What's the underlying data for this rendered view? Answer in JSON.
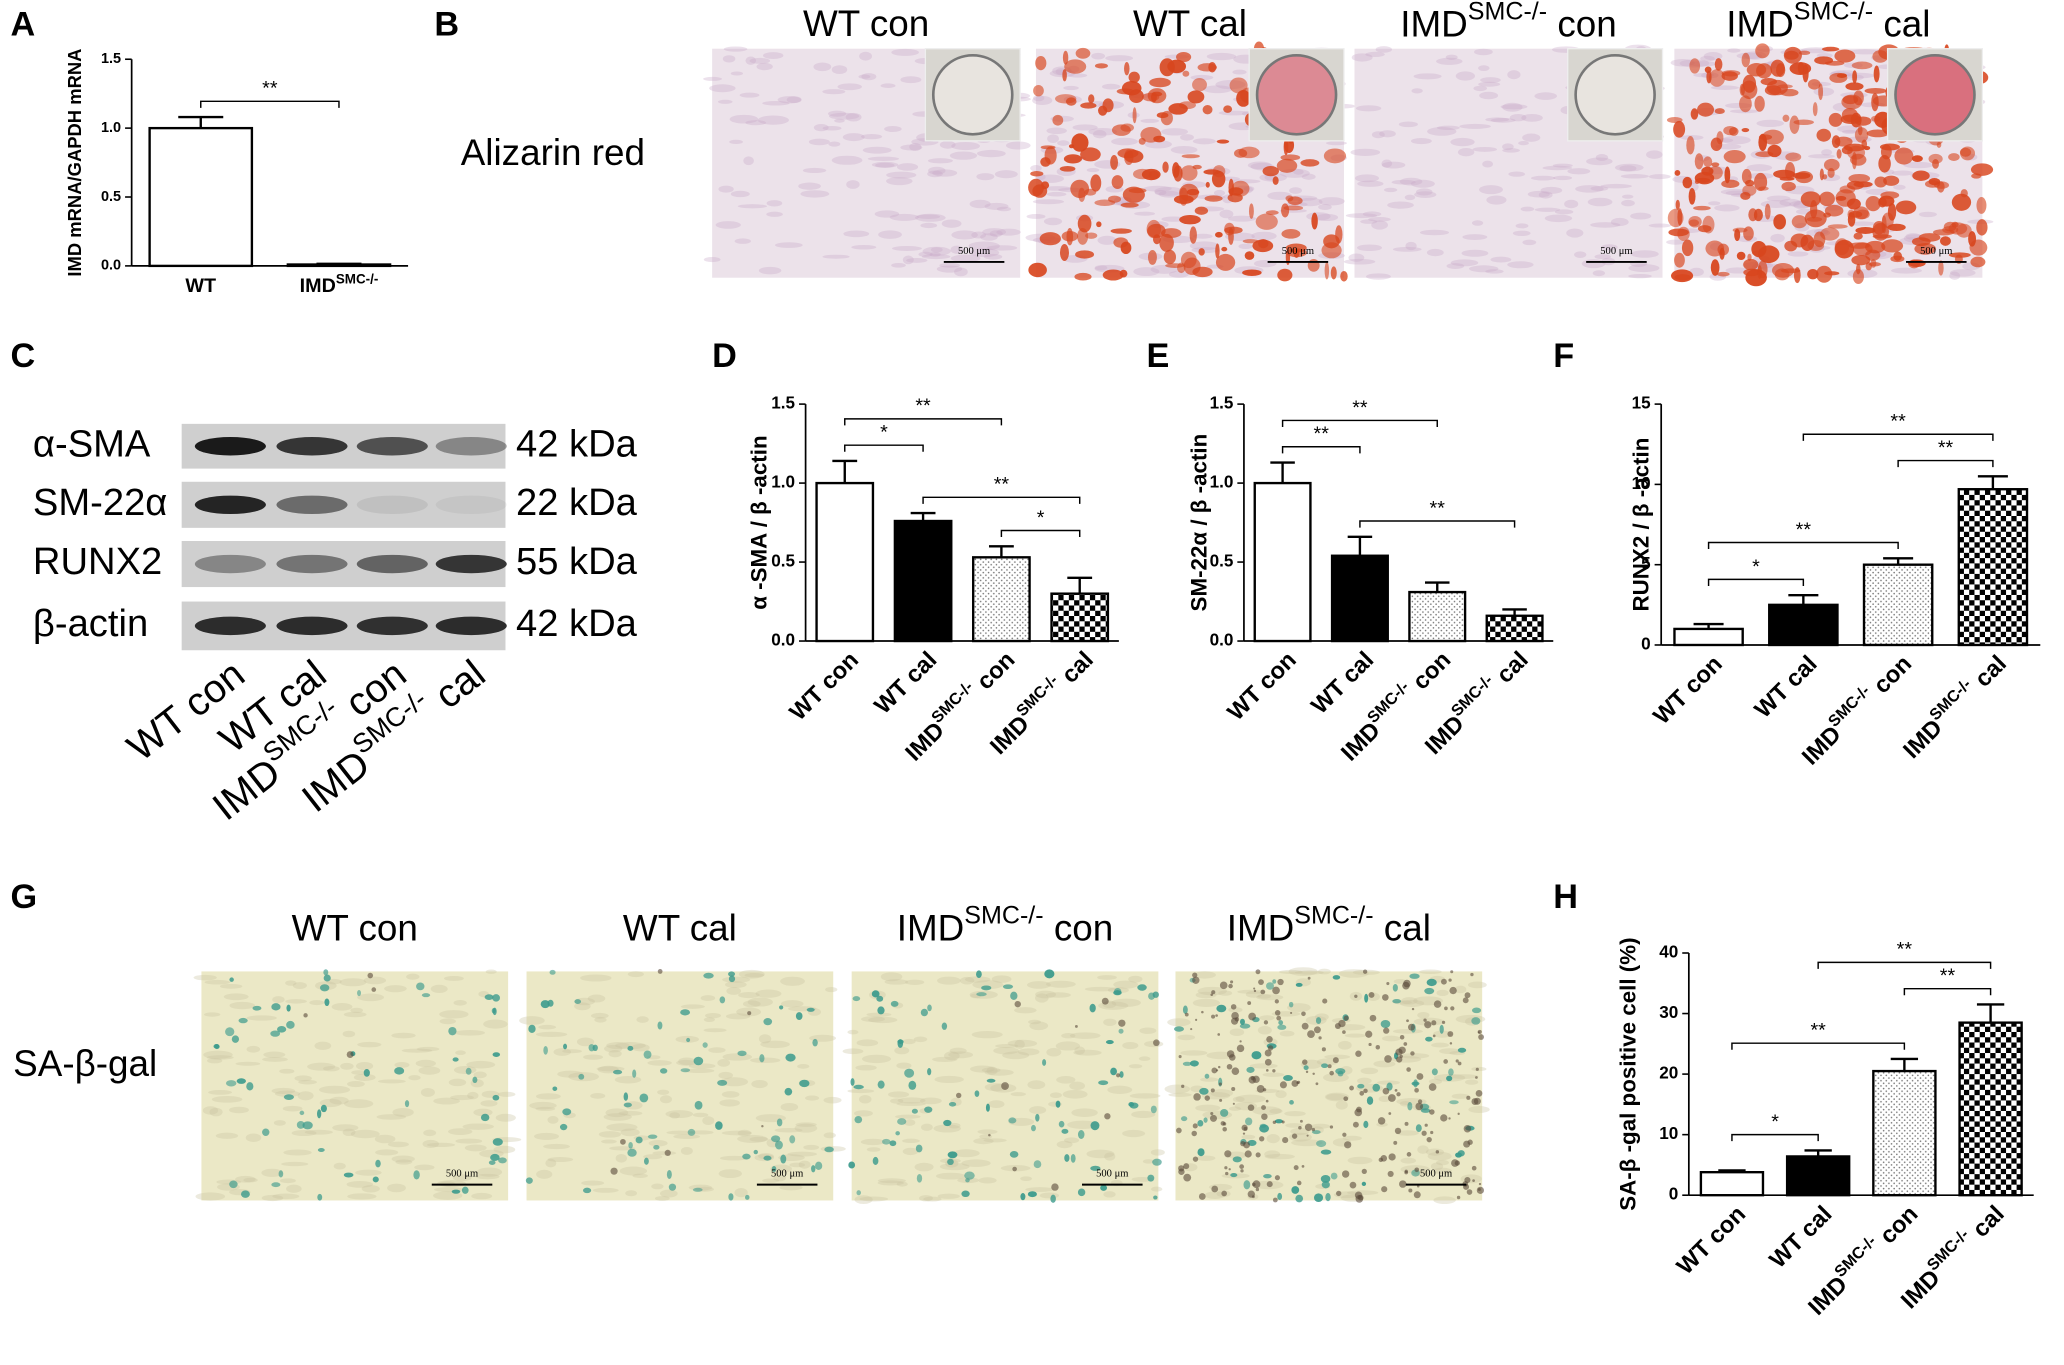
{
  "superscript": "SMC-/-",
  "chart_data": [
    {
      "type": "bar",
      "panel": "A",
      "y_label": "IMD mRNA/GAPDH mRNA",
      "categories": [
        "WT",
        "IMDSMC-/-"
      ],
      "values": [
        1.0,
        0.01
      ],
      "errors": [
        0.08,
        0.005
      ],
      "patterns": [
        "none",
        "none"
      ],
      "ylim": [
        0,
        1.5
      ],
      "yticks": [
        {
          "value": 0,
          "label": "0.0"
        },
        0.5,
        {
          "value": 1,
          "label": "1.0"
        },
        1.5
      ],
      "annotations": [
        {
          "text": "**",
          "from": 0,
          "to": 1
        }
      ]
    },
    {
      "type": "bar",
      "panel": "D",
      "y_label": "α -SMA / β -actin",
      "categories": [
        "WT con",
        "WT cal",
        "IMDSMC-/- con",
        "IMDSMC-/- cal"
      ],
      "values": [
        1.0,
        0.76,
        0.53,
        0.3
      ],
      "errors": [
        0.14,
        0.05,
        0.07,
        0.1
      ],
      "patterns": [
        "none",
        "solid",
        "dots",
        "checker"
      ],
      "ylim": [
        0,
        1.5
      ],
      "yticks": [
        {
          "value": 0,
          "label": "0.0"
        },
        0.5,
        {
          "value": 1,
          "label": "1.0"
        },
        1.5
      ],
      "annotations": [
        {
          "text": "*",
          "from": 0,
          "to": 1
        },
        {
          "text": "*",
          "from": 2,
          "to": 3
        },
        {
          "text": "**",
          "from": 1,
          "to": 3
        },
        {
          "text": "**",
          "from": 0,
          "to": 2
        }
      ]
    },
    {
      "type": "bar",
      "panel": "E",
      "y_label": "SM-22α / β -actin",
      "categories": [
        "WT con",
        "WT cal",
        "IMDSMC-/- con",
        "IMDSMC-/- cal"
      ],
      "values": [
        1.0,
        0.54,
        0.31,
        0.16
      ],
      "errors": [
        0.13,
        0.12,
        0.06,
        0.04
      ],
      "patterns": [
        "none",
        "solid",
        "dots",
        "checker"
      ],
      "ylim": [
        0,
        1.5
      ],
      "yticks": [
        {
          "value": 0,
          "label": "0.0"
        },
        0.5,
        {
          "value": 1,
          "label": "1.0"
        },
        1.5
      ],
      "annotations": [
        {
          "text": "**",
          "from": 0,
          "to": 1
        },
        {
          "text": "**",
          "from": 1,
          "to": 3
        },
        {
          "text": "**",
          "from": 0,
          "to": 2
        }
      ]
    },
    {
      "type": "bar",
      "panel": "F",
      "y_label": "RUNX2 / β -actin",
      "categories": [
        "WT con",
        "WT cal",
        "IMDSMC-/- con",
        "IMDSMC-/- cal"
      ],
      "values": [
        1.0,
        2.5,
        5.0,
        9.7
      ],
      "errors": [
        0.3,
        0.6,
        0.4,
        0.8
      ],
      "patterns": [
        "none",
        "solid",
        "dots",
        "checker"
      ],
      "ylim": [
        0,
        15
      ],
      "yticks": [
        0,
        5,
        10,
        15
      ],
      "annotations": [
        {
          "text": "*",
          "from": 0,
          "to": 1
        },
        {
          "text": "**",
          "from": 2,
          "to": 3
        },
        {
          "text": "**",
          "from": 0,
          "to": 2
        },
        {
          "text": "**",
          "from": 1,
          "to": 3
        }
      ]
    },
    {
      "type": "bar",
      "panel": "H",
      "y_label": "SA-β -gal positive cell (%)",
      "categories": [
        "WT con",
        "WT cal",
        "IMDSMC-/- con",
        "IMDSMC-/- cal"
      ],
      "values": [
        3.8,
        6.4,
        20.5,
        28.5
      ],
      "errors": [
        0.3,
        1.0,
        2.0,
        3.0
      ],
      "patterns": [
        "none",
        "solid",
        "dots",
        "checker"
      ],
      "ylim": [
        0,
        40
      ],
      "yticks": [
        0,
        10,
        20,
        30,
        40
      ],
      "annotations": [
        {
          "text": "*",
          "from": 0,
          "to": 1
        },
        {
          "text": "**",
          "from": 2,
          "to": 3
        },
        {
          "text": "**",
          "from": 0,
          "to": 2
        },
        {
          "text": "**",
          "from": 1,
          "to": 3
        }
      ]
    }
  ],
  "panel_b": {
    "letter": "B",
    "row_label": "Alizarin red",
    "columns": [
      "WT con",
      "WT cal",
      "IMDSMC-/- con",
      "IMDSMC-/- cal"
    ],
    "scale_bar": "500 μm"
  },
  "panel_c": {
    "letter": "C",
    "rows": [
      {
        "protein": "α-SMA",
        "size": "42 kDa"
      },
      {
        "protein": "SM-22α",
        "size": "22 kDa"
      },
      {
        "protein": "RUNX2",
        "size": "55 kDa"
      },
      {
        "protein": "β-actin",
        "size": "42 kDa"
      }
    ],
    "lanes": [
      "WT con",
      "WT cal",
      "IMDSMC-/- con",
      "IMDSMC-/- cal"
    ]
  },
  "panel_g": {
    "letter": "G",
    "row_label": "SA-β-gal",
    "columns": [
      "WT con",
      "WT cal",
      "IMDSMC-/- con",
      "IMDSMC-/- cal"
    ],
    "scale_bar": "500 μm"
  }
}
